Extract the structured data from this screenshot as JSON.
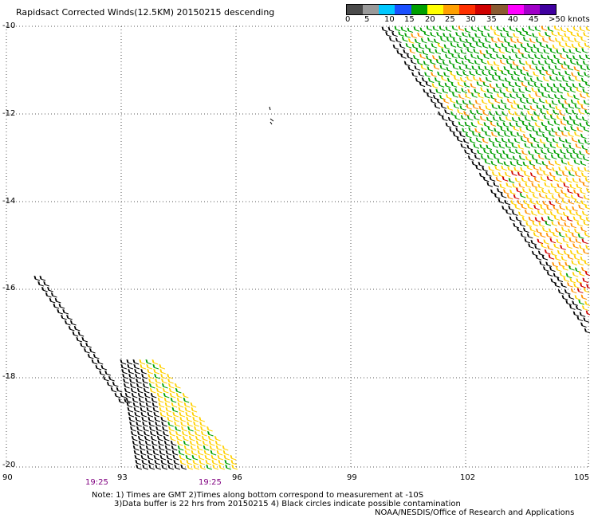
{
  "header": {
    "title": "Rapidsact Corrected Winds(12.5KM) 20150215 descending"
  },
  "legend": {
    "labels": [
      "0",
      "5",
      "10",
      "15",
      "20",
      "25",
      "30",
      "35",
      "40",
      "45",
      ">50 knots"
    ],
    "colors": [
      "#4a4a4a",
      "#9a9a9a",
      "#00c8ff",
      "#1a50ff",
      "#00a000",
      "#ffff00",
      "#ffa000",
      "#ff3000",
      "#d00000",
      "#8a5a30",
      "#ff00ff",
      "#a000c8",
      "#4000a0"
    ]
  },
  "axes": {
    "x_ticks": [
      "90",
      "93",
      "96",
      "99",
      "102",
      "105"
    ],
    "y_ticks": [
      "-10",
      "-12",
      "-14",
      "-16",
      "-18",
      "-20"
    ]
  },
  "times": {
    "left": "19:25",
    "right": "19:25"
  },
  "notes": {
    "line1": "Note: 1) Times are GMT 2)Times along bottom correspond to measurement at -10S",
    "line2": "3)Data buffer is 22 hrs from 20150215 4) Black circles indicate possible contamination",
    "credit": "NOAA/NESDIS/Office of Research and Applications"
  }
}
